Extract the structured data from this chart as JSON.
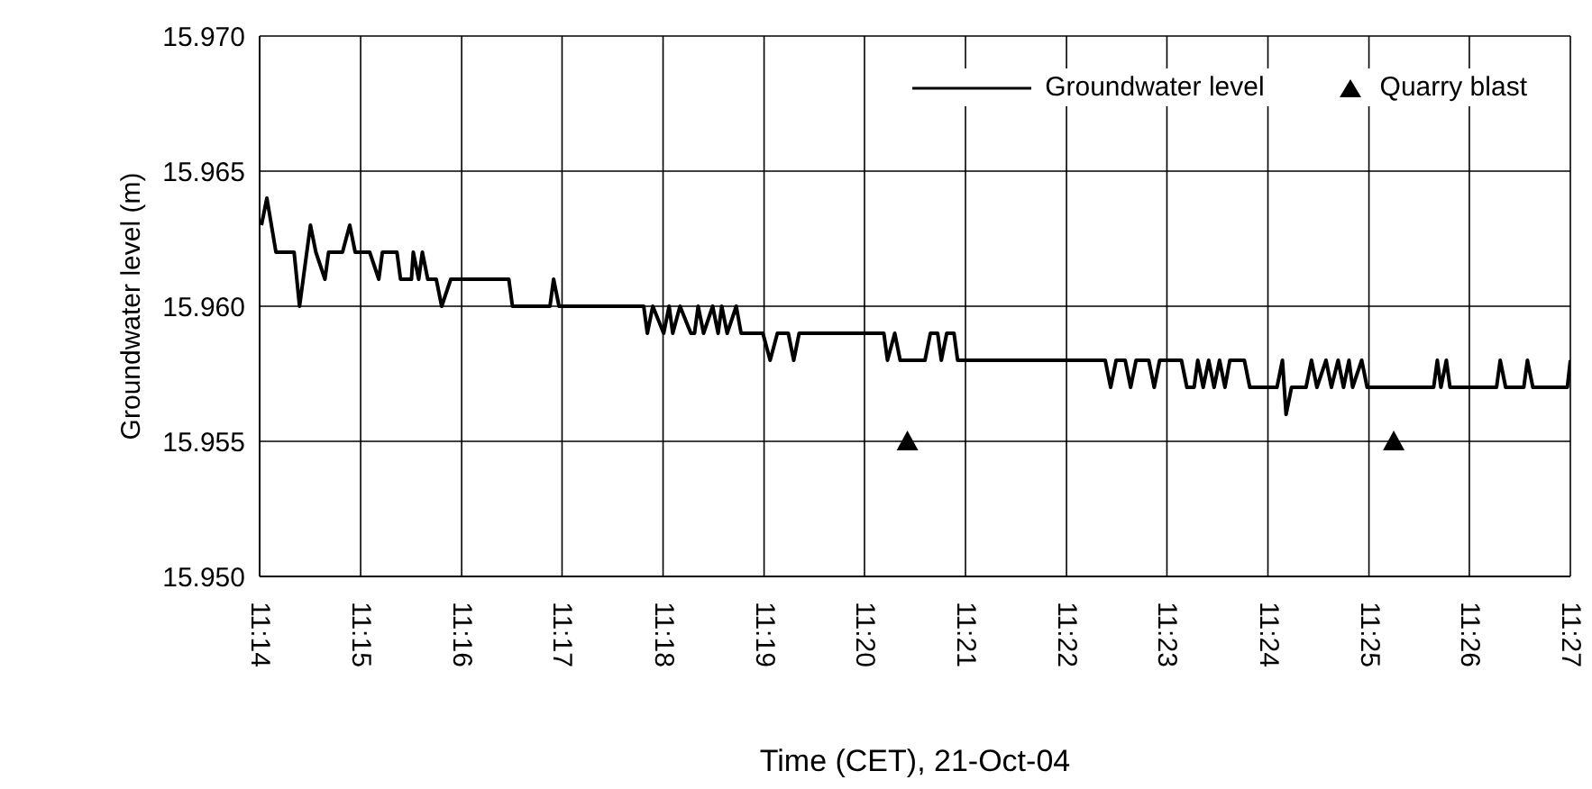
{
  "chart_data": {
    "type": "line",
    "xlabel": "Time (CET), 21-Oct-04",
    "ylabel": "Groundwater level (m)",
    "xlim": [
      11.2333,
      11.45
    ],
    "ylim": [
      15.95,
      15.97
    ],
    "xticks": [
      {
        "value": 11.2333,
        "label": "11:14"
      },
      {
        "value": 11.25,
        "label": "11:15"
      },
      {
        "value": 11.2667,
        "label": "11:16"
      },
      {
        "value": 11.2833,
        "label": "11:17"
      },
      {
        "value": 11.3,
        "label": "11:18"
      },
      {
        "value": 11.3167,
        "label": "11:19"
      },
      {
        "value": 11.3333,
        "label": "11:20"
      },
      {
        "value": 11.35,
        "label": "11:21"
      },
      {
        "value": 11.3667,
        "label": "11:22"
      },
      {
        "value": 11.3833,
        "label": "11:23"
      },
      {
        "value": 11.4,
        "label": "11:24"
      },
      {
        "value": 11.4167,
        "label": "11:25"
      },
      {
        "value": 11.4333,
        "label": "11:26"
      },
      {
        "value": 11.45,
        "label": "11:27"
      }
    ],
    "yticks": [
      {
        "value": 15.95,
        "label": "15.950"
      },
      {
        "value": 15.955,
        "label": "15.955"
      },
      {
        "value": 15.96,
        "label": "15.960"
      },
      {
        "value": 15.965,
        "label": "15.965"
      },
      {
        "value": 15.97,
        "label": "15.970"
      }
    ],
    "grid": true,
    "legend": "top right",
    "series": [
      {
        "name": "Groundwater level",
        "color": "#000000",
        "line_style": "solid",
        "x": [
          11.2336,
          11.2345,
          11.236,
          11.239,
          11.2399,
          11.2417,
          11.2426,
          11.2441,
          11.2447,
          11.247,
          11.2482,
          11.2491,
          11.2515,
          11.253,
          11.2536,
          11.256,
          11.2566,
          11.2584,
          11.2587,
          11.2596,
          11.2602,
          11.2611,
          11.2625,
          11.2634,
          11.2649,
          11.2745,
          11.2751,
          11.2813,
          11.2819,
          11.2828,
          11.2968,
          11.2974,
          11.2983,
          11.3001,
          11.301,
          11.3016,
          11.3028,
          11.3046,
          11.3052,
          11.3058,
          11.3067,
          11.3082,
          11.3091,
          11.3097,
          11.3106,
          11.3121,
          11.3129,
          11.3165,
          11.3177,
          11.3189,
          11.3207,
          11.3216,
          11.3225,
          11.3365,
          11.3371,
          11.3383,
          11.3392,
          11.3433,
          11.3442,
          11.3454,
          11.346,
          11.3469,
          11.3481,
          11.3487,
          11.3731,
          11.374,
          11.3749,
          11.3764,
          11.3773,
          11.3782,
          11.3803,
          11.3812,
          11.3821,
          11.3857,
          11.3866,
          11.3878,
          11.3884,
          11.3893,
          11.3902,
          11.3911,
          11.392,
          11.3929,
          11.3937,
          11.3961,
          11.397,
          11.4015,
          11.4024,
          11.403,
          11.4039,
          11.4063,
          11.4072,
          11.4081,
          11.4096,
          11.4105,
          11.4116,
          11.4125,
          11.4134,
          11.414,
          11.4155,
          11.4164,
          11.4274,
          11.428,
          11.4286,
          11.4295,
          11.4301,
          11.4378,
          11.4384,
          11.4393,
          11.4423,
          11.4429,
          11.4438,
          11.4495,
          11.45
        ],
        "values": [
          15.963,
          15.964,
          15.962,
          15.962,
          15.96,
          15.963,
          15.962,
          15.961,
          15.962,
          15.962,
          15.963,
          15.962,
          15.962,
          15.961,
          15.962,
          15.962,
          15.961,
          15.961,
          15.962,
          15.961,
          15.962,
          15.961,
          15.961,
          15.96,
          15.961,
          15.961,
          15.96,
          15.96,
          15.961,
          15.96,
          15.96,
          15.959,
          15.96,
          15.959,
          15.96,
          15.959,
          15.96,
          15.959,
          15.959,
          15.96,
          15.959,
          15.96,
          15.959,
          15.96,
          15.959,
          15.96,
          15.959,
          15.959,
          15.958,
          15.959,
          15.959,
          15.958,
          15.959,
          15.959,
          15.958,
          15.959,
          15.958,
          15.958,
          15.959,
          15.959,
          15.958,
          15.959,
          15.959,
          15.958,
          15.958,
          15.957,
          15.958,
          15.958,
          15.957,
          15.958,
          15.958,
          15.957,
          15.958,
          15.958,
          15.957,
          15.957,
          15.958,
          15.957,
          15.958,
          15.957,
          15.958,
          15.957,
          15.958,
          15.958,
          15.957,
          15.957,
          15.958,
          15.956,
          15.957,
          15.957,
          15.958,
          15.957,
          15.958,
          15.957,
          15.958,
          15.957,
          15.958,
          15.957,
          15.958,
          15.957,
          15.957,
          15.958,
          15.957,
          15.958,
          15.957,
          15.957,
          15.958,
          15.957,
          15.957,
          15.958,
          15.957,
          15.957,
          15.958
        ]
      },
      {
        "name": "Quarry blast",
        "type": "scatter",
        "color": "#000000",
        "marker": "triangle",
        "x": [
          11.3404,
          11.4208
        ],
        "values": [
          15.955,
          15.955
        ]
      }
    ]
  }
}
